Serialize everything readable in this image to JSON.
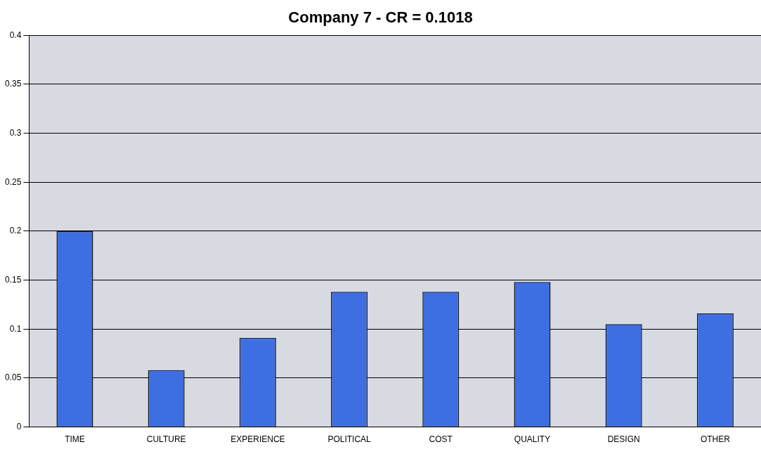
{
  "chart_data": {
    "type": "bar",
    "title": "Company 7 - CR = 0.1018",
    "categories": [
      "TIME",
      "CULTURE",
      "EXPERIENCE",
      "POLITICAL",
      "COST",
      "QUALITY",
      "DESIGN",
      "OTHER"
    ],
    "values": [
      0.2,
      0.058,
      0.091,
      0.138,
      0.138,
      0.148,
      0.105,
      0.116
    ],
    "color": "#3d6fe3",
    "ylim": [
      0,
      0.4
    ],
    "yticks": [
      0,
      0.05,
      0.1,
      0.15,
      0.2,
      0.25,
      0.3,
      0.35,
      0.4
    ],
    "grid": "y"
  }
}
